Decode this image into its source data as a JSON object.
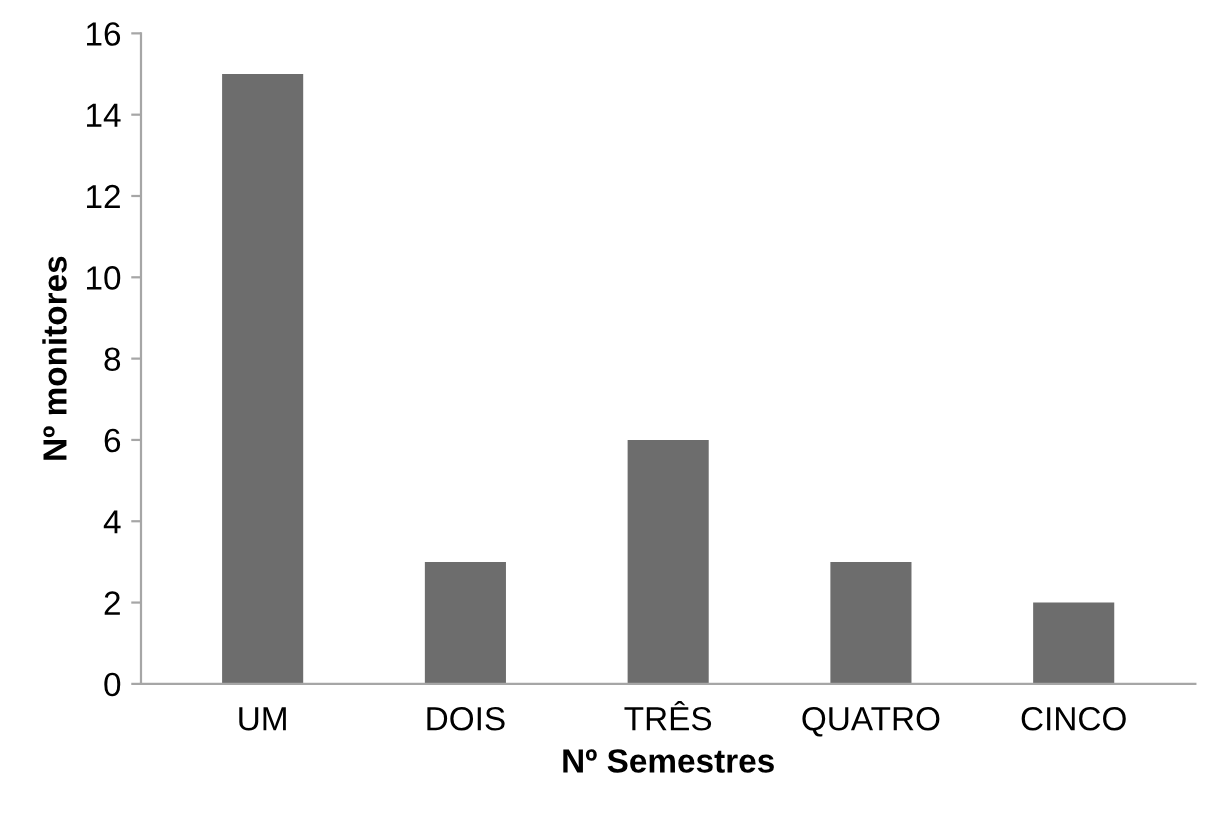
{
  "chart_data": {
    "type": "bar",
    "xlabel": "Nº Semestres",
    "ylabel": "Nº monitores",
    "categories": [
      "UM",
      "DOIS",
      "TRÊS",
      "QUATRO",
      "CINCO"
    ],
    "values": [
      15,
      3,
      6,
      3,
      2
    ],
    "color": "#6d6d6d",
    "ylim": [
      0,
      16
    ],
    "yticks": [
      0,
      2,
      4,
      6,
      8,
      10,
      12,
      14,
      16
    ],
    "grid": false,
    "legend": false
  }
}
